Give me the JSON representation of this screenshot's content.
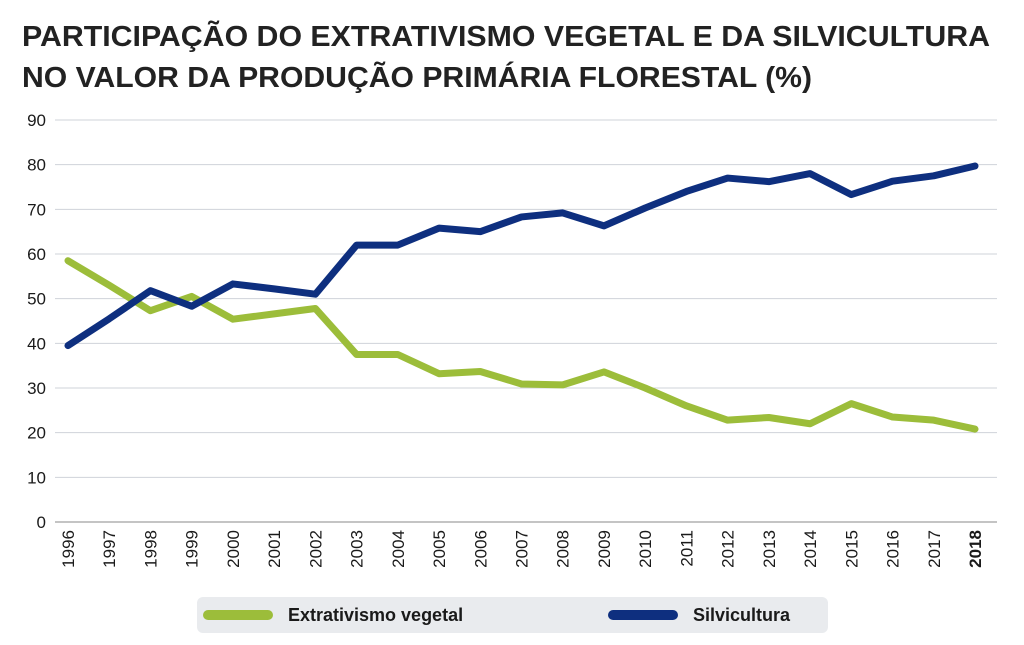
{
  "chart_data": {
    "type": "line",
    "title": [
      "PARTICIPAÇÃO DO EXTRATIVISMO VEGETAL E DA SILVICULTURA",
      "NO VALOR DA PRODUÇÃO PRIMÁRIA FLORESTAL (%)"
    ],
    "categories": [
      "1996",
      "1997",
      "1998",
      "1999",
      "2000",
      "2001",
      "2002",
      "2003",
      "2004",
      "2005",
      "2006",
      "2007",
      "2008",
      "2009",
      "2010",
      "2011",
      "2012",
      "2013",
      "2014",
      "2015",
      "2016",
      "2017",
      "2018"
    ],
    "series": [
      {
        "name": "Extrativismo vegetal",
        "color": "#9cbd3a",
        "values": [
          58.5,
          53,
          47.3,
          50.5,
          45.4,
          46.6,
          47.8,
          37.5,
          37.5,
          33.2,
          33.7,
          30.9,
          30.7,
          33.6,
          30,
          26,
          22.8,
          23.4,
          22,
          26.5,
          23.5,
          22.8,
          20.8
        ]
      },
      {
        "name": "Silvicultura",
        "color": "#0e2f7f",
        "values": [
          39.5,
          45.5,
          51.8,
          48.3,
          53.3,
          52.2,
          51,
          62,
          62,
          65.8,
          65,
          68.3,
          69.2,
          66.3,
          70.3,
          74,
          77,
          76.2,
          78,
          73.3,
          76.3,
          77.5,
          79.7
        ]
      }
    ],
    "ylim": [
      0,
      90
    ],
    "yticks": [
      0,
      10,
      20,
      30,
      40,
      50,
      60,
      70,
      80,
      90
    ],
    "grid": true,
    "legend": "bottom"
  }
}
